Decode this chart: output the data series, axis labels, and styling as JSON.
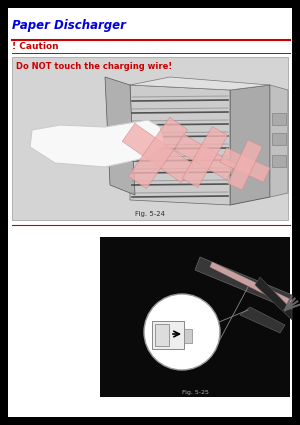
{
  "bg_color": "#000000",
  "page_bg": "#ffffff",
  "title_text": "Paper Discharger",
  "title_color": "#0000dd",
  "caution_header": "! Caution",
  "caution_header_color": "#cc0000",
  "caution_line_color": "#cc0000",
  "caution_text": "Do NOT touch the charging wire!",
  "caution_text_color": "#cc0000",
  "fig1_caption": "Fig. 5-24",
  "fig2_caption": "Fig. 5-25",
  "fig1_bg": "#d4d4d4",
  "warning_x_color": "#f0b0b0",
  "hand_color": "#f8f8f8",
  "printer_light": "#c8c8c8",
  "printer_dark": "#888888",
  "printer_darkest": "#444444",
  "rib_color": "#555555"
}
